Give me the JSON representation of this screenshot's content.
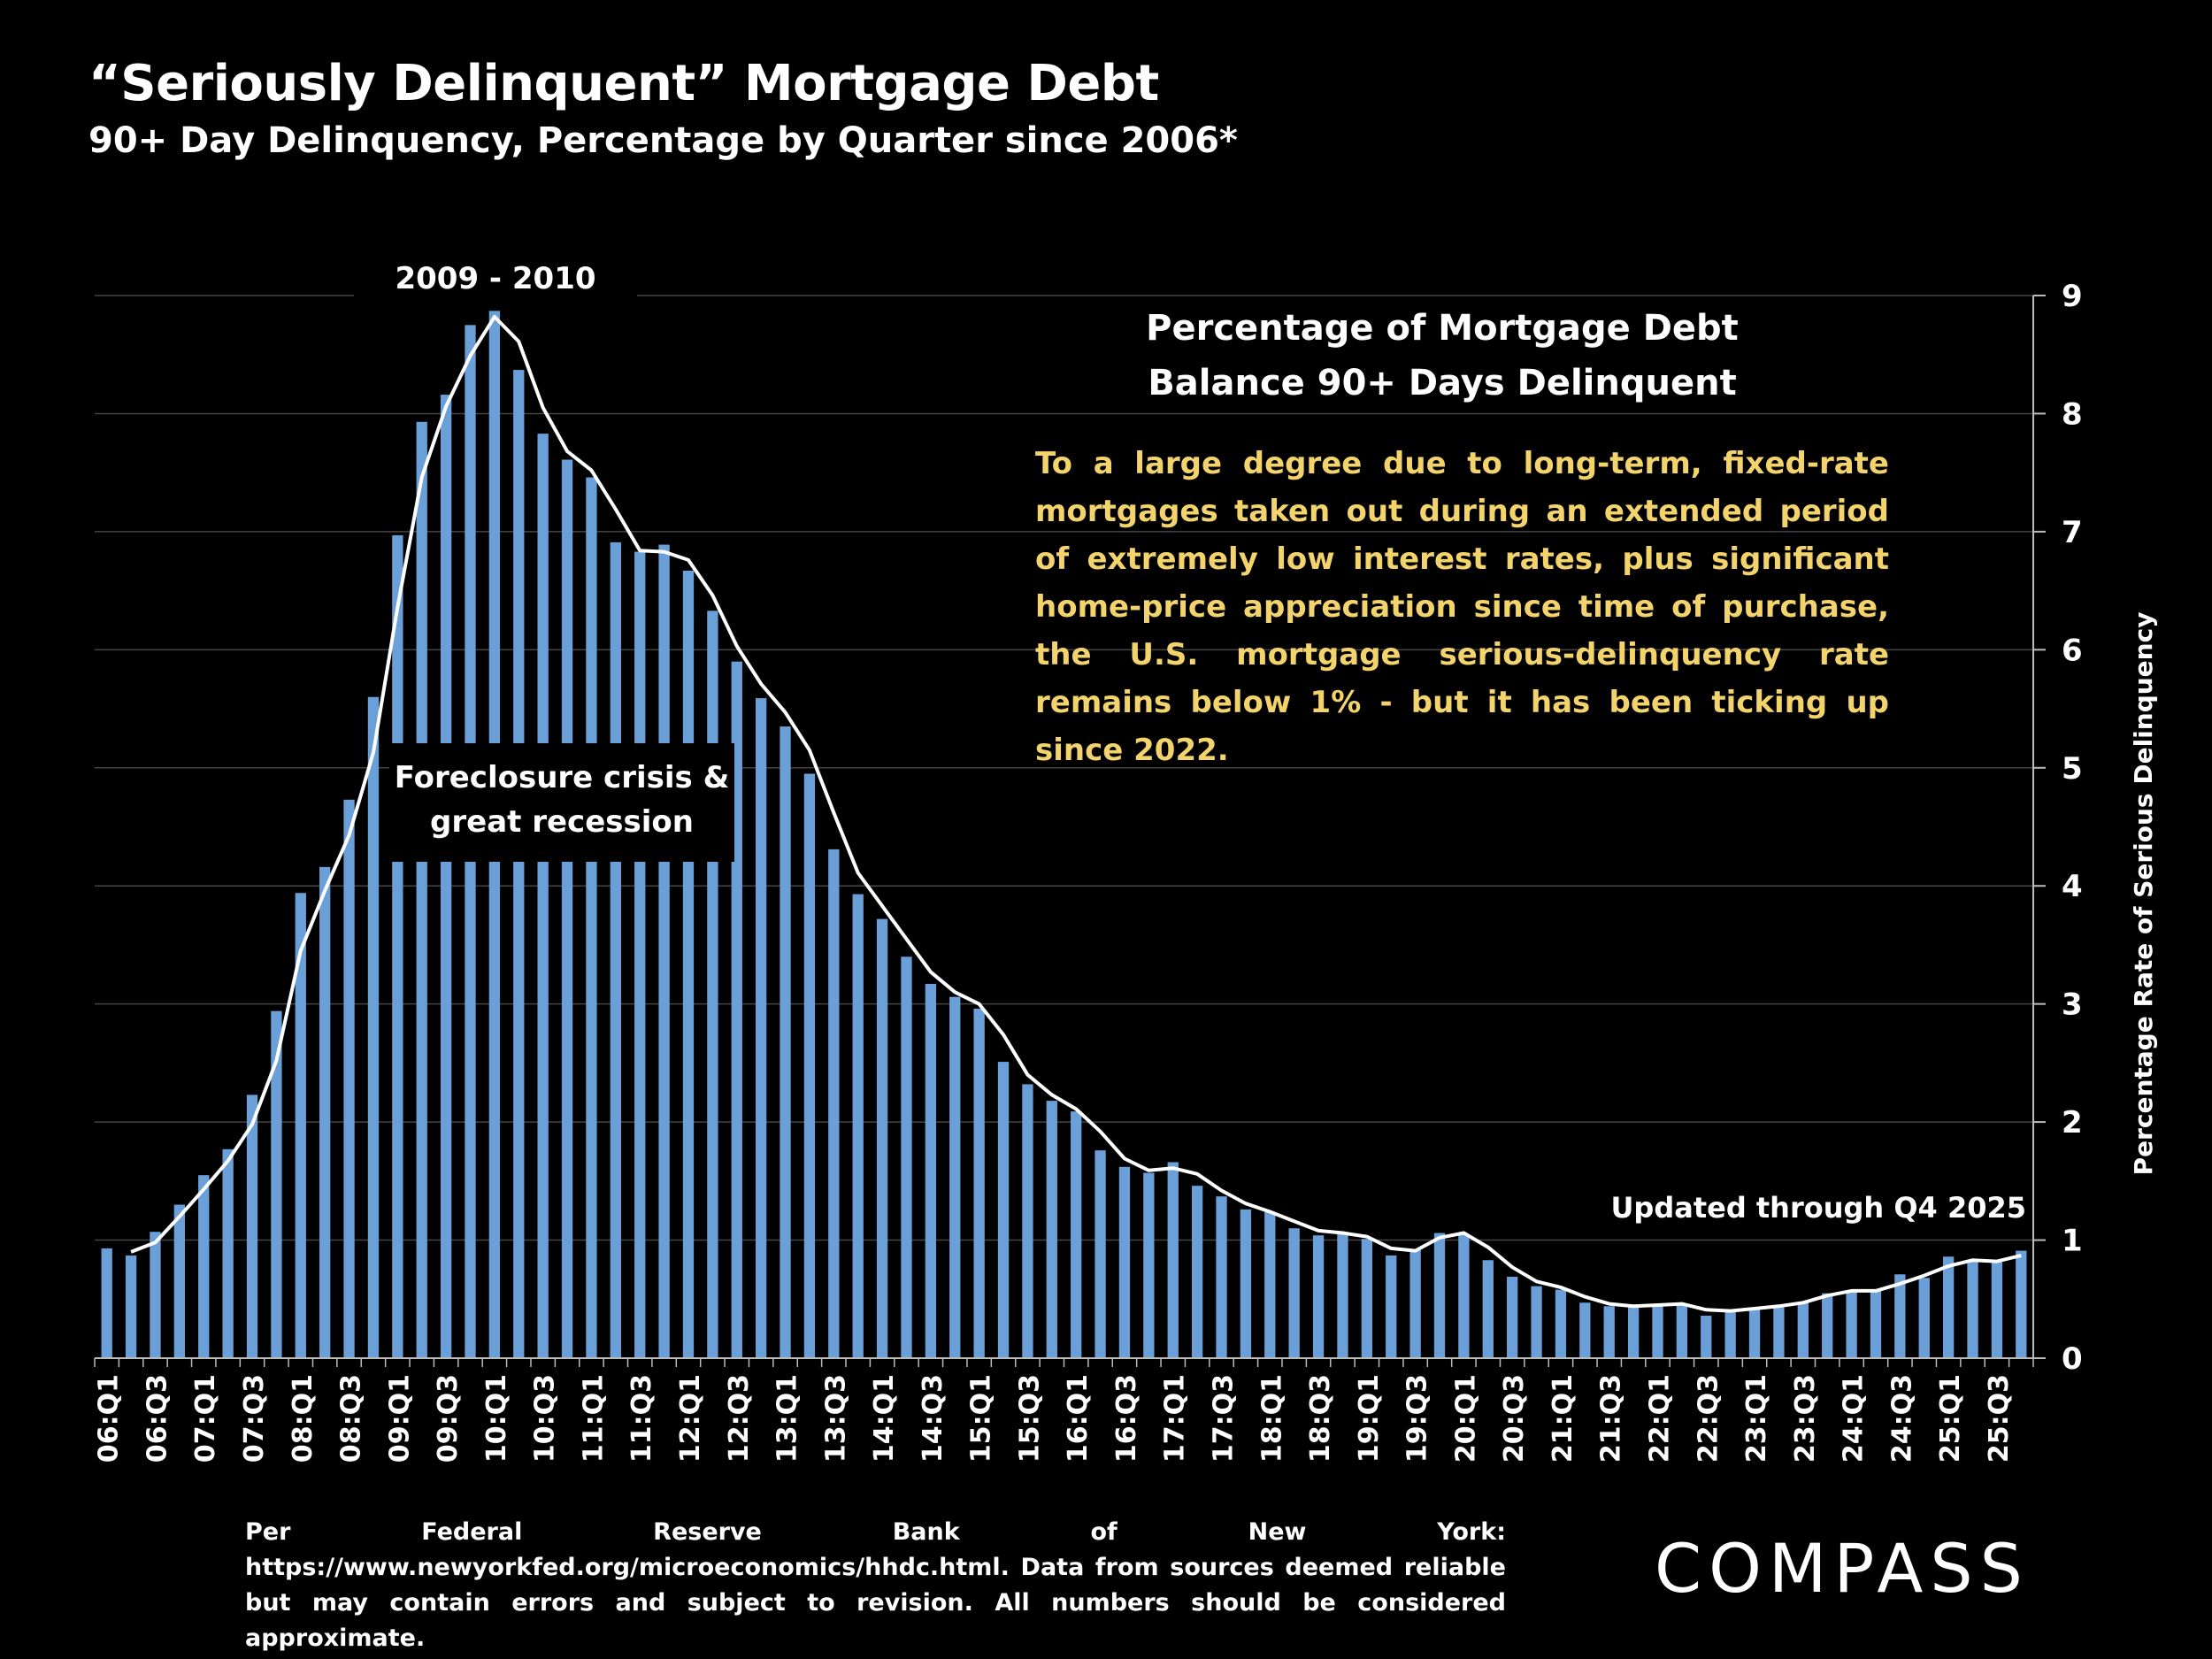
{
  "page": {
    "title": "“Seriously Delinquent” Mortgage Debt",
    "subtitle": "90+ Day Delinquency, Percentage by Quarter since 2006*"
  },
  "annotations": {
    "peak": "2009 - 2010",
    "crisis": "Foreclosure crisis & great recession",
    "note_title_line1": "Percentage of Mortgage Debt",
    "note_title_line2": "Balance 90+ Days Delinquent",
    "note_body": "To a large degree due to long-term, fixed-rate mortgages taken out during an extended period of extremely low interest rates, plus significant home-price appreciation since time of purchase, the U.S. mortgage serious-delinquency rate remains below 1% - but it has been ticking up since 2022.",
    "updated": "Updated through Q4 2025"
  },
  "footnote": "Per Federal Reserve Bank of New York: https://www.newyorkfed.org/microeconomics/hhdc.html. Data from sources deemed reliable but may contain errors and subject to revision. All numbers should be considered approximate.",
  "logo": "COMPASS",
  "colors": {
    "bar": "#6a9fd8",
    "line": "#ffffff",
    "note": "#f3d36b",
    "grid": "#444444"
  },
  "chart_data": {
    "type": "bar",
    "ylabel": "Percentage Rate of Serious Delinquency",
    "ylim": [
      0,
      9
    ],
    "yticks": [
      0,
      1,
      2,
      3,
      4,
      5,
      6,
      7,
      8,
      9
    ],
    "y_axis_side": "right",
    "grid": true,
    "categories": [
      "06:Q1",
      "06:Q2",
      "06:Q3",
      "06:Q4",
      "07:Q1",
      "07:Q2",
      "07:Q3",
      "07:Q4",
      "08:Q1",
      "08:Q2",
      "08:Q3",
      "08:Q4",
      "09:Q1",
      "09:Q2",
      "09:Q3",
      "09:Q4",
      "10:Q1",
      "10:Q2",
      "10:Q3",
      "10:Q4",
      "11:Q1",
      "11:Q2",
      "11:Q3",
      "11:Q4",
      "12:Q1",
      "12:Q2",
      "12:Q3",
      "12:Q4",
      "13:Q1",
      "13:Q2",
      "13:Q3",
      "13:Q4",
      "14:Q1",
      "14:Q2",
      "14:Q3",
      "14:Q4",
      "15:Q1",
      "15:Q2",
      "15:Q3",
      "15:Q4",
      "16:Q1",
      "16:Q2",
      "16:Q3",
      "16:Q4",
      "17:Q1",
      "17:Q2",
      "17:Q3",
      "17:Q4",
      "18:Q1",
      "18:Q2",
      "18:Q3",
      "18:Q4",
      "19:Q1",
      "19:Q2",
      "19:Q3",
      "19:Q4",
      "20:Q1",
      "20:Q2",
      "20:Q3",
      "20:Q4",
      "21:Q1",
      "21:Q2",
      "21:Q3",
      "21:Q4",
      "22:Q1",
      "22:Q2",
      "22:Q3",
      "22:Q4",
      "23:Q1",
      "23:Q2",
      "23:Q3",
      "23:Q4",
      "24:Q1",
      "24:Q2",
      "24:Q3",
      "24:Q4",
      "25:Q1",
      "25:Q2",
      "25:Q3",
      "25:Q4"
    ],
    "tick_labels": [
      "06:Q1",
      "06:Q3",
      "07:Q1",
      "07:Q3",
      "08:Q1",
      "08:Q3",
      "09:Q1",
      "09:Q3",
      "10:Q1",
      "10:Q3",
      "11:Q1",
      "11:Q3",
      "12:Q1",
      "12:Q3",
      "13:Q1",
      "13:Q3",
      "14:Q1",
      "14:Q3",
      "15:Q1",
      "15:Q3",
      "16:Q1",
      "16:Q3",
      "17:Q1",
      "17:Q3",
      "18:Q1",
      "18:Q3",
      "19:Q1",
      "19:Q3",
      "20:Q1",
      "20:Q3",
      "21:Q1",
      "21:Q3",
      "22:Q1",
      "22:Q3",
      "23:Q1",
      "23:Q3",
      "24:Q1",
      "24:Q3",
      "25:Q1",
      "25:Q3"
    ],
    "series": [
      {
        "type": "bar",
        "values": [
          0.93,
          0.87,
          1.07,
          1.3,
          1.55,
          1.77,
          2.23,
          2.94,
          3.94,
          4.16,
          4.73,
          5.6,
          6.97,
          7.93,
          8.16,
          8.75,
          8.87,
          8.37,
          7.83,
          7.61,
          7.46,
          6.91,
          6.83,
          6.89,
          6.67,
          6.33,
          5.9,
          5.59,
          5.35,
          4.95,
          4.31,
          3.93,
          3.72,
          3.4,
          3.17,
          3.06,
          2.96,
          2.51,
          2.32,
          2.18,
          2.09,
          1.76,
          1.62,
          1.57,
          1.66,
          1.46,
          1.37,
          1.26,
          1.24,
          1.1,
          1.04,
          1.05,
          1.01,
          0.87,
          0.92,
          1.06,
          1.05,
          0.83,
          0.69,
          0.61,
          0.58,
          0.47,
          0.44,
          0.44,
          0.44,
          0.46,
          0.36,
          0.39,
          0.42,
          0.44,
          0.47,
          0.55,
          0.56,
          0.57,
          0.71,
          0.68,
          0.86,
          0.82,
          0.82,
          0.91
        ]
      },
      {
        "type": "line",
        "values": [
          null,
          0.9,
          0.98,
          1.2,
          1.43,
          1.67,
          1.98,
          2.52,
          3.45,
          3.96,
          4.43,
          5.13,
          6.36,
          7.46,
          8.06,
          8.49,
          8.82,
          8.61,
          8.05,
          7.68,
          7.52,
          7.19,
          6.84,
          6.83,
          6.76,
          6.46,
          6.03,
          5.71,
          5.47,
          5.15,
          4.62,
          4.11,
          3.83,
          3.55,
          3.27,
          3.1,
          3.0,
          2.74,
          2.4,
          2.23,
          2.11,
          1.92,
          1.69,
          1.59,
          1.61,
          1.56,
          1.42,
          1.31,
          1.24,
          1.16,
          1.08,
          1.06,
          1.03,
          0.93,
          0.91,
          1.02,
          1.06,
          0.94,
          0.77,
          0.65,
          0.6,
          0.52,
          0.46,
          0.44,
          0.45,
          0.46,
          0.41,
          0.4,
          0.42,
          0.44,
          0.47,
          0.53,
          0.57,
          0.57,
          0.63,
          0.7,
          0.78,
          0.83,
          0.82,
          0.87
        ]
      }
    ]
  }
}
